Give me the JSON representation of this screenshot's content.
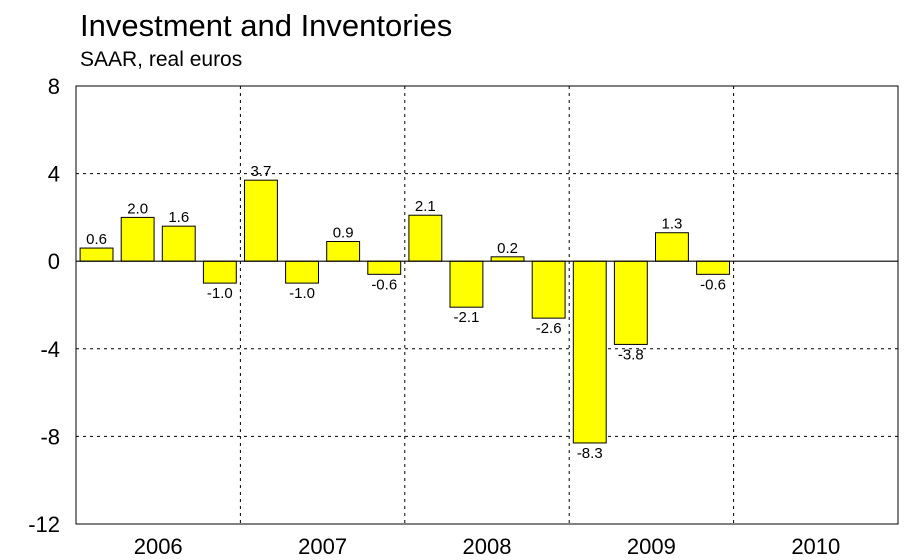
{
  "chart_data": {
    "type": "bar",
    "title": "Investment and Inventories",
    "subtitle": "SAAR, real euros",
    "xlabel": "",
    "ylabel": "",
    "ylim": [
      -12,
      8
    ],
    "yticks": [
      "8",
      "4",
      "0",
      "-4",
      "-8",
      "-12"
    ],
    "ytick_values": [
      8,
      4,
      0,
      -4,
      -8,
      -12
    ],
    "year_labels": [
      "2006",
      "2007",
      "2008",
      "2009",
      "2010"
    ],
    "categories": [
      "2006 Q1",
      "2006 Q2",
      "2006 Q3",
      "2006 Q4",
      "2007 Q1",
      "2007 Q2",
      "2007 Q3",
      "2007 Q4",
      "2008 Q1",
      "2008 Q2",
      "2008 Q3",
      "2008 Q4",
      "2009 Q1",
      "2009 Q2",
      "2009 Q3",
      "2009 Q4"
    ],
    "values": [
      0.6,
      2.0,
      1.6,
      -1.0,
      3.7,
      -1.0,
      0.9,
      -0.6,
      2.1,
      -2.1,
      0.2,
      -2.6,
      -8.3,
      -3.8,
      1.3,
      -0.6
    ],
    "value_labels": [
      "0.6",
      "2.0",
      "1.6",
      "-1.0",
      "3.7",
      "-1.0",
      "0.9",
      "-0.6",
      "2.1",
      "-2.1",
      "0.2",
      "-2.6",
      "-8.3",
      "-3.8",
      "1.3",
      "-0.6"
    ],
    "bar_color": "#ffff00",
    "grid": true,
    "legend": "none"
  }
}
